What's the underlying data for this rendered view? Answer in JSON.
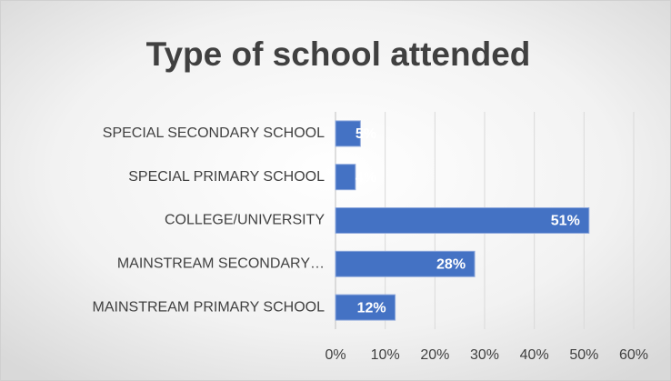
{
  "chart_data": {
    "type": "bar",
    "orientation": "horizontal",
    "title": "Type of school attended",
    "categories": [
      "SPECIAL SECONDARY SCHOOL",
      "SPECIAL PRIMARY SCHOOL",
      "COLLEGE/UNIVERSITY",
      "MAINSTREAM SECONDARY…",
      "MAINSTREAM PRIMARY SCHOOL"
    ],
    "values": [
      5,
      4,
      51,
      28,
      12
    ],
    "value_labels": [
      "5%",
      "4%",
      "51%",
      "28%",
      "12%"
    ],
    "color": "#4472c4",
    "xlim": [
      0,
      60
    ],
    "xticks": [
      {
        "value": 0,
        "label": "0%"
      },
      {
        "value": 10,
        "label": "10%"
      },
      {
        "value": 20,
        "label": "20%"
      },
      {
        "value": 30,
        "label": "30%"
      },
      {
        "value": 40,
        "label": "40%"
      },
      {
        "value": 50,
        "label": "50%"
      },
      {
        "value": 60,
        "label": "60%"
      }
    ],
    "grid": true
  }
}
